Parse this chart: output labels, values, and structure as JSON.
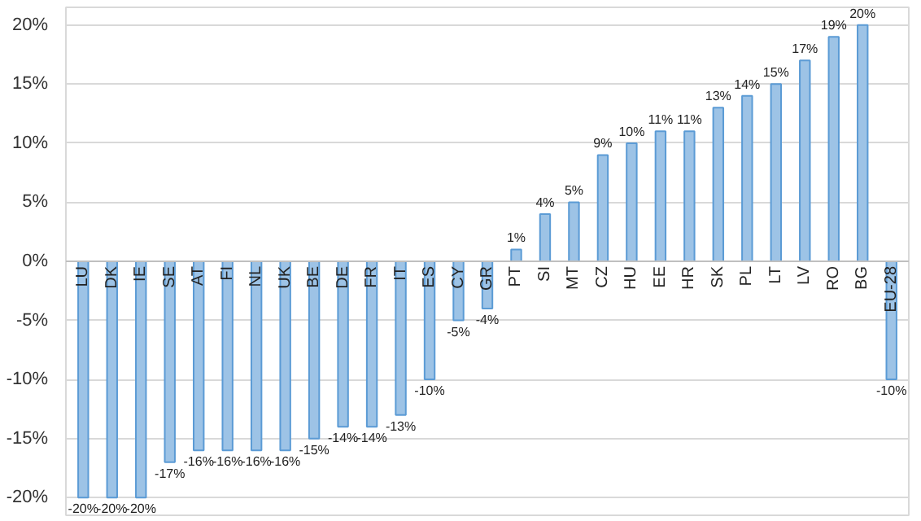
{
  "chart_data": {
    "type": "bar",
    "categories": [
      "LU",
      "DK",
      "IE",
      "SE",
      "AT",
      "FI",
      "NL",
      "UK",
      "BE",
      "DE",
      "FR",
      "IT",
      "ES",
      "CY",
      "GR",
      "PT",
      "SI",
      "MT",
      "CZ",
      "HU",
      "EE",
      "HR",
      "SK",
      "PL",
      "LT",
      "LV",
      "RO",
      "BG",
      "EU-28"
    ],
    "values": [
      -20,
      -20,
      -20,
      -17,
      -16,
      -16,
      -16,
      -16,
      -15,
      -14,
      -14,
      -13,
      -10,
      -5,
      -4,
      1,
      4,
      5,
      9,
      10,
      11,
      11,
      13,
      14,
      15,
      17,
      19,
      20,
      -10
    ],
    "value_labels": [
      "-20%",
      "-20%",
      "-20%",
      "-17%",
      "-16%",
      "-16%",
      "-16%",
      "-16%",
      "-15%",
      "-14%",
      "-14%",
      "-13%",
      "-10%",
      "-5%",
      "-4%",
      "1%",
      "4%",
      "5%",
      "9%",
      "10%",
      "11%",
      "11%",
      "13%",
      "14%",
      "15%",
      "17%",
      "19%",
      "20%",
      "-10%"
    ],
    "color": "#9dc3e6",
    "ylim": [
      -21.5,
      21.5
    ],
    "yticks": [
      {
        "value": -20,
        "label": "-20%"
      },
      {
        "value": -15,
        "label": "-15%"
      },
      {
        "value": -10,
        "label": "-10%"
      },
      {
        "value": -5,
        "label": "-5%"
      },
      {
        "value": 0,
        "label": "0%"
      },
      {
        "value": 5,
        "label": "5%"
      },
      {
        "value": 10,
        "label": "10%"
      },
      {
        "value": 15,
        "label": "15%"
      },
      {
        "value": 20,
        "label": "20%"
      }
    ],
    "grid": "y"
  }
}
